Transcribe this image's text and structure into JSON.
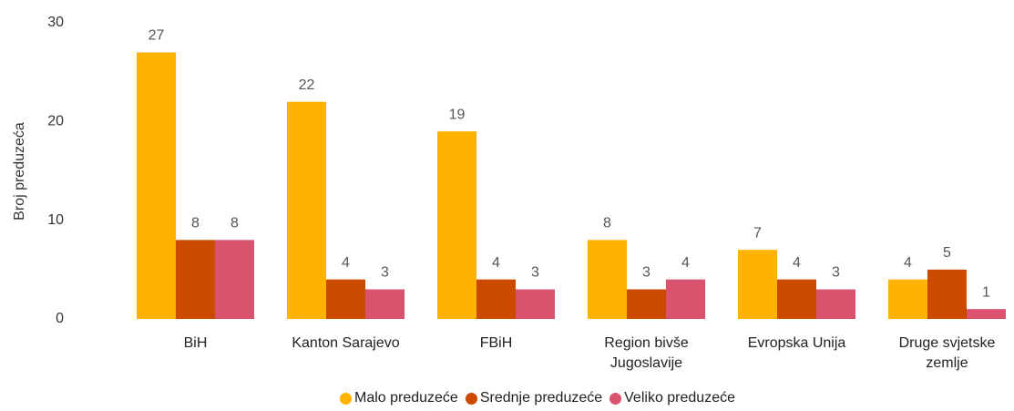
{
  "chart_data": {
    "type": "bar",
    "y_label": "Broj preduzeća",
    "categories": [
      "BiH",
      "Kanton Sarajevo",
      "FBiH",
      "Region bivše Jugoslavije",
      "Evropska Unija",
      "Druge svjetske zemlje"
    ],
    "series": [
      {
        "name": "Malo preduzeće",
        "color": "#ffb300",
        "values": [
          27,
          22,
          19,
          8,
          7,
          4
        ]
      },
      {
        "name": "Srednje preduzeće",
        "color": "#cc4a00",
        "values": [
          8,
          4,
          4,
          3,
          4,
          5
        ]
      },
      {
        "name": "Veliko preduzeće",
        "color": "#d9536f",
        "values": [
          8,
          3,
          3,
          4,
          3,
          1
        ]
      }
    ],
    "ylim": [
      0,
      30
    ],
    "yticks": [
      0,
      10,
      20,
      30
    ],
    "grid": false,
    "legend": "bottom"
  }
}
